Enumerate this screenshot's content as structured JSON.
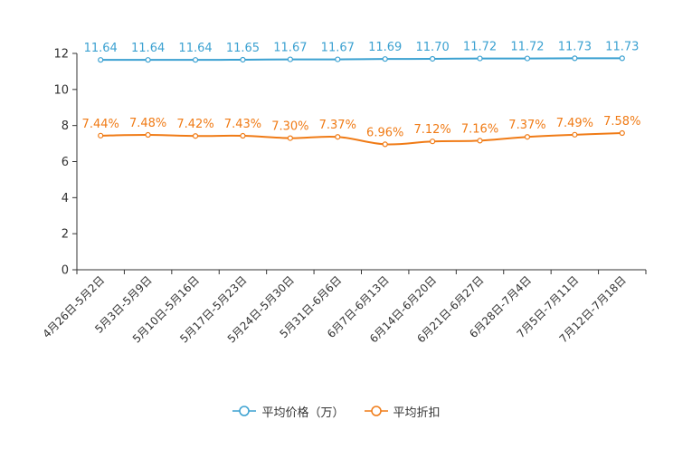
{
  "chart_data": {
    "type": "line",
    "categories": [
      "4月26日-5月2日",
      "5月3日-5月9日",
      "5月10日-5月16日",
      "5月17日-5月23日",
      "5月24日-5月30日",
      "5月31日-6月6日",
      "6月7日-6月13日",
      "6月14日-6月20日",
      "6月21日-6月27日",
      "6月28日-7月4日",
      "7月5日-7月11日",
      "7月12日-7月18日"
    ],
    "series": [
      {
        "name": "平均价格（万）",
        "values": [
          11.64,
          11.64,
          11.64,
          11.65,
          11.67,
          11.67,
          11.69,
          11.7,
          11.72,
          11.72,
          11.73,
          11.73
        ],
        "labels": [
          "11.64",
          "11.64",
          "11.64",
          "11.65",
          "11.67",
          "11.67",
          "11.69",
          "11.70",
          "11.72",
          "11.72",
          "11.73",
          "11.73"
        ],
        "color": "#3ba1d1"
      },
      {
        "name": "平均折扣",
        "values": [
          7.44,
          7.48,
          7.42,
          7.43,
          7.3,
          7.37,
          6.96,
          7.12,
          7.16,
          7.37,
          7.49,
          7.58
        ],
        "labels": [
          "7.44%",
          "7.48%",
          "7.42%",
          "7.43%",
          "7.30%",
          "7.37%",
          "6.96%",
          "7.12%",
          "7.16%",
          "7.37%",
          "7.49%",
          "7.58%"
        ],
        "color": "#f07b16"
      }
    ],
    "yticks": [
      "0",
      "2",
      "4",
      "6",
      "8",
      "10",
      "12"
    ],
    "ylim": [
      0,
      12
    ],
    "title": "",
    "xlabel": "",
    "ylabel": "",
    "legend_position": "bottom-center"
  }
}
